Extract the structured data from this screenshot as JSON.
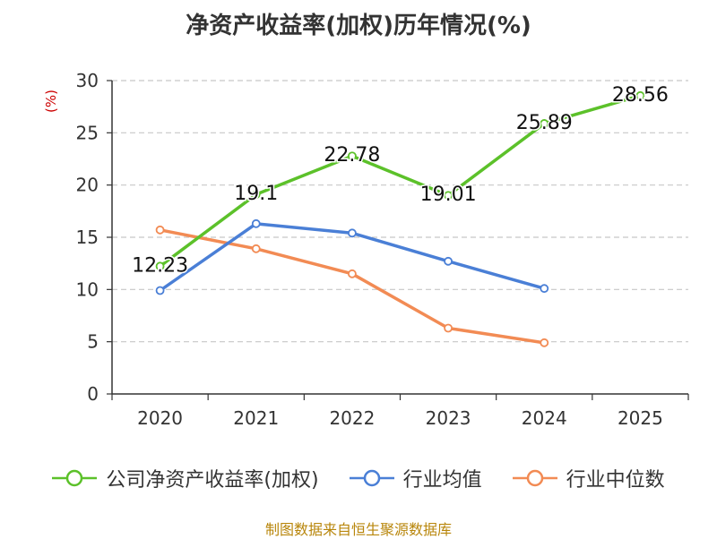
{
  "chart_data": {
    "type": "line",
    "title": "净资产收益率(加权)历年情况(%)",
    "ylabel": "(%)",
    "categories": [
      "2020",
      "2021",
      "2022",
      "2023",
      "2024",
      "2025"
    ],
    "ylim": [
      0,
      30
    ],
    "yticks": [
      0,
      5,
      10,
      15,
      20,
      25,
      30
    ],
    "grid": true,
    "legend_position": "bottom",
    "series": [
      {
        "name": "公司净资产收益率(加权)",
        "color": "#5cc12a",
        "values": [
          12.23,
          19.1,
          22.78,
          19.01,
          25.89,
          28.56
        ],
        "labels": [
          "12.23",
          "19.1",
          "22.78",
          "19.01",
          "25.89",
          "28.56"
        ]
      },
      {
        "name": "行业均值",
        "color": "#4a7fd6",
        "values": [
          9.9,
          16.3,
          15.4,
          12.7,
          10.1,
          null
        ]
      },
      {
        "name": "行业中位数",
        "color": "#f28b54",
        "values": [
          15.7,
          13.9,
          11.5,
          6.3,
          4.9,
          null
        ]
      }
    ]
  },
  "source": "制图数据来自恒生聚源数据库"
}
